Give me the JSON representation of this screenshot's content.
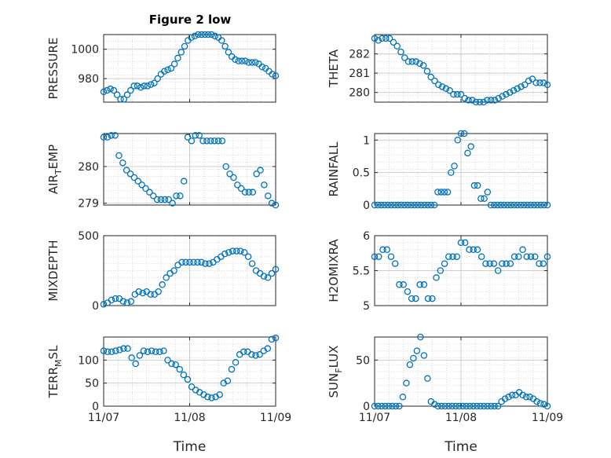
{
  "title": "Figure 2 low",
  "colors": {
    "marker": "#0072BD",
    "axis": "#262626",
    "grid": "#d9d9d9"
  },
  "chart_data": [
    {
      "id": "pressure",
      "type": "scatter",
      "ylabel": "PRESSURE",
      "yticks": [
        "980",
        "1000"
      ],
      "ytick_values": [
        980,
        1000
      ],
      "ylim": [
        964,
        1010
      ],
      "xlim": [
        0,
        2
      ],
      "xticks": [
        "11/07",
        "11/08",
        "11/09"
      ],
      "x_tick_values": [
        0,
        1,
        2
      ],
      "xticks_visible": false,
      "values": [
        971,
        972,
        973,
        972,
        969,
        966,
        966,
        969,
        972,
        975,
        975,
        974,
        975,
        975,
        976,
        977,
        980,
        983,
        985,
        986,
        987,
        990,
        994,
        998,
        1002,
        1006,
        1008,
        1009,
        1010,
        1010,
        1010,
        1010,
        1010,
        1009,
        1008,
        1006,
        1002,
        998,
        995,
        993,
        992,
        992,
        992,
        991,
        991,
        991,
        990,
        988,
        987,
        985,
        983,
        982
      ]
    },
    {
      "id": "theta",
      "type": "scatter",
      "ylabel": "THETA",
      "yticks": [
        "280",
        "281",
        "282"
      ],
      "ytick_values": [
        280,
        281,
        282
      ],
      "ylim": [
        279.5,
        283
      ],
      "xlim": [
        0,
        2
      ],
      "xticks": [
        "11/07",
        "11/08",
        "11/09"
      ],
      "x_tick_values": [
        0,
        1,
        2
      ],
      "xticks_visible": false,
      "values": [
        282.8,
        282.7,
        282.8,
        282.8,
        282.8,
        282.6,
        282.4,
        282.1,
        281.8,
        281.6,
        281.6,
        281.6,
        281.5,
        281.4,
        281.1,
        280.8,
        280.6,
        280.4,
        280.3,
        280.2,
        280.1,
        279.9,
        279.9,
        279.9,
        279.7,
        279.6,
        279.6,
        279.5,
        279.5,
        279.5,
        279.6,
        279.6,
        279.6,
        279.7,
        279.8,
        279.9,
        280.0,
        280.1,
        280.2,
        280.3,
        280.4,
        280.6,
        280.7,
        280.5,
        280.5,
        280.5,
        280.4
      ]
    },
    {
      "id": "air_temp",
      "type": "scatter",
      "ylabel": "AIR_TEMP",
      "ylabel_main": "AIR",
      "ylabel_sub": "T",
      "ylabel_rest": "EMP",
      "yticks": [
        "279",
        "280"
      ],
      "ytick_values": [
        279,
        280
      ],
      "ylim": [
        278.95,
        280.9
      ],
      "xlim": [
        0,
        2
      ],
      "xticks": [
        "11/07",
        "11/08",
        "11/09"
      ],
      "x_tick_values": [
        0,
        1,
        2
      ],
      "xticks_visible": false,
      "values": [
        280.8,
        280.8,
        280.85,
        280.85,
        280.3,
        280.1,
        279.9,
        279.8,
        279.7,
        279.6,
        279.5,
        279.4,
        279.3,
        279.2,
        279.1,
        279.1,
        279.1,
        279.1,
        279.0,
        279.2,
        279.2,
        279.6,
        280.8,
        280.7,
        280.85,
        280.85,
        280.7,
        280.7,
        280.7,
        280.7,
        280.7,
        280.7,
        280.0,
        279.8,
        279.7,
        279.5,
        279.4,
        279.3,
        279.3,
        279.3,
        279.8,
        279.9,
        279.5,
        279.2,
        279.0,
        278.95
      ]
    },
    {
      "id": "rainfall",
      "type": "scatter",
      "ylabel": "RAINFALL",
      "yticks": [
        "0",
        "0.5",
        "1"
      ],
      "ytick_values": [
        0,
        0.5,
        1
      ],
      "ylim": [
        0,
        1.1
      ],
      "xlim": [
        0,
        2
      ],
      "xticks": [
        "11/07",
        "11/08",
        "11/09"
      ],
      "x_tick_values": [
        0,
        1,
        2
      ],
      "xticks_visible": false,
      "values": [
        0,
        0,
        0,
        0,
        0,
        0,
        0,
        0,
        0,
        0,
        0,
        0,
        0,
        0,
        0,
        0,
        0,
        0,
        0,
        0.2,
        0.2,
        0.2,
        0.2,
        0.5,
        0.6,
        1.0,
        1.1,
        1.1,
        0.8,
        0.9,
        0.3,
        0.3,
        0.1,
        0.1,
        0.2,
        0,
        0,
        0,
        0,
        0,
        0,
        0,
        0,
        0,
        0,
        0,
        0,
        0,
        0,
        0,
        0,
        0,
        0
      ]
    },
    {
      "id": "mixdepth",
      "type": "scatter",
      "ylabel": "MIXDEPTH",
      "yticks": [
        "0",
        "500"
      ],
      "ytick_values": [
        0,
        500
      ],
      "ylim": [
        0,
        500
      ],
      "xlim": [
        0,
        2
      ],
      "xticks": [
        "11/07",
        "11/08",
        "11/09"
      ],
      "x_tick_values": [
        0,
        1,
        2
      ],
      "xticks_visible": false,
      "values": [
        10,
        20,
        40,
        50,
        50,
        30,
        20,
        30,
        80,
        100,
        90,
        100,
        80,
        80,
        100,
        150,
        200,
        230,
        250,
        290,
        310,
        310,
        310,
        310,
        310,
        310,
        300,
        300,
        310,
        330,
        350,
        370,
        380,
        390,
        390,
        390,
        380,
        350,
        300,
        250,
        230,
        210,
        200,
        230,
        260
      ]
    },
    {
      "id": "h2omixra",
      "type": "scatter",
      "ylabel": "H2OMIXRA",
      "yticks": [
        "5",
        "5.5",
        "6"
      ],
      "ytick_values": [
        5,
        5.5,
        6
      ],
      "ylim": [
        5,
        6
      ],
      "xlim": [
        0,
        2
      ],
      "xticks": [
        "11/07",
        "11/08",
        "11/09"
      ],
      "x_tick_values": [
        0,
        1,
        2
      ],
      "xticks_visible": false,
      "values": [
        5.7,
        5.7,
        5.8,
        5.8,
        5.7,
        5.6,
        5.3,
        5.3,
        5.2,
        5.1,
        5.1,
        5.3,
        5.3,
        5.1,
        5.1,
        5.4,
        5.5,
        5.6,
        5.7,
        5.7,
        5.7,
        5.9,
        5.9,
        5.8,
        5.8,
        5.8,
        5.7,
        5.6,
        5.6,
        5.6,
        5.5,
        5.6,
        5.6,
        5.6,
        5.7,
        5.7,
        5.8,
        5.7,
        5.7,
        5.7,
        5.6,
        5.6,
        5.7
      ]
    },
    {
      "id": "terr_msl",
      "type": "scatter",
      "ylabel": "TERR_MSL",
      "ylabel_main": "TERR",
      "ylabel_sub": "M",
      "ylabel_rest": "SL",
      "yticks": [
        "0",
        "50",
        "100"
      ],
      "ytick_values": [
        0,
        50,
        100
      ],
      "ylim": [
        0,
        150
      ],
      "xlim": [
        0,
        2
      ],
      "xticks": [
        "11/07",
        "11/08",
        "11/09"
      ],
      "x_tick_values": [
        0,
        1,
        2
      ],
      "xticks_visible": false,
      "values": [
        120,
        118,
        118,
        120,
        122,
        125,
        125,
        105,
        92,
        110,
        120,
        118,
        120,
        118,
        118,
        120,
        100,
        92,
        90,
        80,
        68,
        58,
        42,
        35,
        30,
        25,
        20,
        18,
        20,
        25,
        50,
        55,
        80,
        95,
        112,
        118,
        118,
        112,
        110,
        112,
        120,
        125,
        145,
        148
      ]
    },
    {
      "id": "sun_flux",
      "type": "scatter",
      "ylabel": "SUN_FLUX",
      "ylabel_main": "SUN",
      "ylabel_sub": "F",
      "ylabel_rest": "LUX",
      "yticks": [
        "0",
        "50"
      ],
      "ytick_values": [
        0,
        50
      ],
      "ylim": [
        0,
        75
      ],
      "xlim": [
        0,
        2
      ],
      "xticks": [
        "11/07",
        "11/08",
        "11/09"
      ],
      "x_tick_values": [
        0,
        1,
        2
      ],
      "xticks_visible": true,
      "xlabel": "Time",
      "values": [
        0,
        0,
        0,
        0,
        0,
        0,
        0,
        0,
        10,
        25,
        45,
        52,
        60,
        75,
        55,
        30,
        5,
        2,
        0,
        0,
        0,
        0,
        0,
        0,
        0,
        0,
        0,
        0,
        0,
        0,
        0,
        0,
        0,
        0,
        0,
        0,
        5,
        8,
        10,
        12,
        12,
        15,
        12,
        10,
        10,
        8,
        5,
        3,
        2,
        0
      ]
    }
  ],
  "left_col_xlabel": "Time",
  "left_bottom_xticks_visible": true
}
